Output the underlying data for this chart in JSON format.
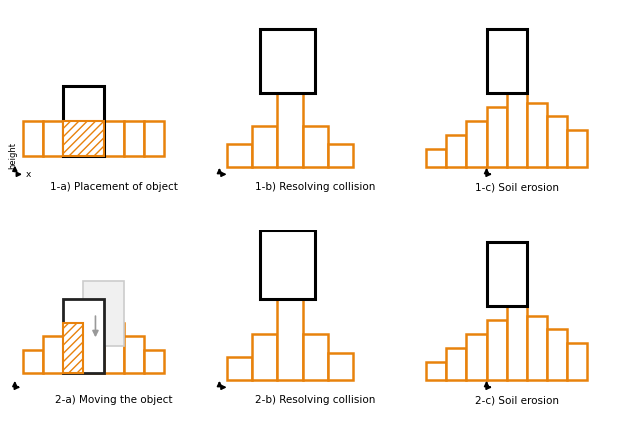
{
  "orange": "#E8820C",
  "black": "#111111",
  "gray": "#999999",
  "lightgray": "#CCCCCC",
  "bg": "#FFFFFF",
  "lw_o": 1.8,
  "lw_b": 2.2,
  "labels": [
    "1-a) Placement of object",
    "1-b) Resolving collision",
    "1-c) Soil erosion",
    "2-a) Moving the object",
    "2-b) Resolving collision",
    "2-c) Soil erosion"
  ]
}
